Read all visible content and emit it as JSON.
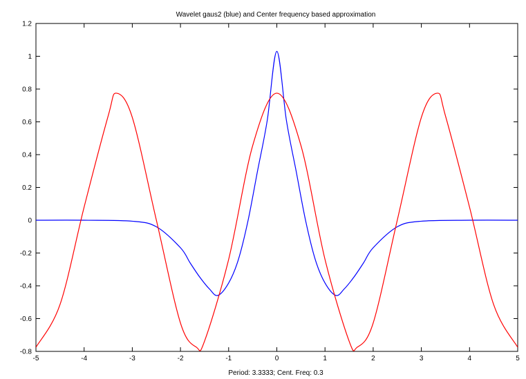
{
  "chart_data": {
    "type": "line",
    "title": "Wavelet gaus2 (blue) and Center frequency based approximation",
    "xlabel": "Period: 3.3333; Cent. Freq: 0.3",
    "ylabel": "",
    "xlim": [
      -5,
      5
    ],
    "ylim": [
      -0.8,
      1.2
    ],
    "x_ticks": [
      -5,
      -4,
      -3,
      -2,
      -1,
      0,
      1,
      2,
      3,
      4,
      5
    ],
    "y_ticks": [
      -0.8,
      -0.6,
      -0.4,
      -0.2,
      0,
      0.2,
      0.4,
      0.6,
      0.8,
      1,
      1.2
    ],
    "grid": false,
    "legend": "none",
    "series": [
      {
        "color": "#0000ff",
        "x": [
          -5,
          -4,
          -3,
          -2.5,
          -2,
          -1.8,
          -1.6,
          -1.4,
          -1.225,
          -1,
          -0.8,
          -0.6,
          -0.4,
          -0.2,
          0,
          0.2,
          0.4,
          0.6,
          0.8,
          1,
          1.225,
          1.4,
          1.6,
          1.8,
          2,
          2.5,
          3,
          4,
          5
        ],
        "values": [
          0,
          0,
          -0.006,
          -0.04,
          -0.168,
          -0.26,
          -0.347,
          -0.419,
          -0.459,
          -0.383,
          -0.242,
          -0.006,
          0.301,
          0.607,
          1.03,
          0.607,
          0.301,
          -0.006,
          -0.242,
          -0.383,
          -0.459,
          -0.419,
          -0.347,
          -0.26,
          -0.168,
          -0.04,
          -0.006,
          0,
          0
        ]
      },
      {
        "color": "#ff0000",
        "x": [
          -5,
          -4.5,
          -4,
          -3.5,
          -3.333,
          -3,
          -2.5,
          -2,
          -1.667,
          -1.5,
          -1,
          -0.5,
          0,
          0.5,
          1,
          1.5,
          1.667,
          2,
          2.5,
          3,
          3.333,
          3.5,
          4,
          4.5,
          5
        ],
        "values": [
          -0.775,
          -0.514,
          0.08,
          0.637,
          0.775,
          0.627,
          0.0,
          -0.627,
          -0.775,
          -0.737,
          -0.239,
          0.456,
          0.775,
          0.456,
          -0.239,
          -0.737,
          -0.775,
          -0.627,
          0.0,
          0.627,
          0.775,
          0.637,
          0.08,
          -0.514,
          -0.775
        ]
      }
    ]
  }
}
